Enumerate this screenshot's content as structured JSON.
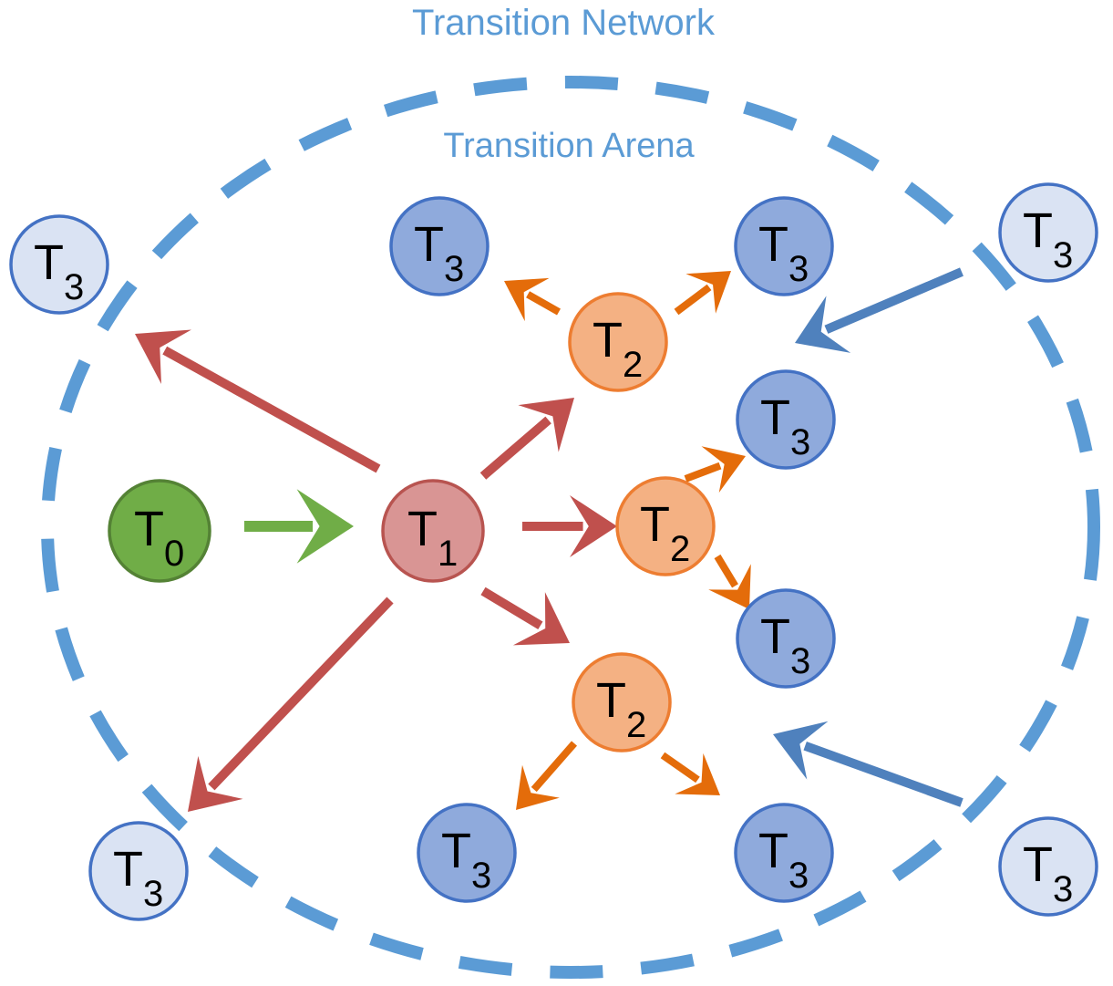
{
  "titles": {
    "network": "Transition Network",
    "arena": "Transition Arena"
  },
  "colors": {
    "arena_border": "#5b9bd5",
    "t0": "#70ad47",
    "t1": "#d99594",
    "t2": "#f4b183",
    "t3_inner": "#8faadc",
    "t3_outer": "#dae3f3",
    "edge_green": "#70ad47",
    "edge_red": "#c0504d",
    "edge_orange": "#e46c0a",
    "edge_blue": "#4f81bd"
  },
  "nodes": [
    {
      "id": "t0",
      "base": "T",
      "sub": "0",
      "kind": "t0"
    },
    {
      "id": "t1",
      "base": "T",
      "sub": "1",
      "kind": "t1"
    },
    {
      "id": "t2-top",
      "base": "T",
      "sub": "2",
      "kind": "t2"
    },
    {
      "id": "t2-mid",
      "base": "T",
      "sub": "2",
      "kind": "t2"
    },
    {
      "id": "t2-bot",
      "base": "T",
      "sub": "2",
      "kind": "t2"
    },
    {
      "id": "t3-a",
      "base": "T",
      "sub": "3",
      "kind": "t3_inner"
    },
    {
      "id": "t3-b",
      "base": "T",
      "sub": "3",
      "kind": "t3_inner"
    },
    {
      "id": "t3-c",
      "base": "T",
      "sub": "3",
      "kind": "t3_inner"
    },
    {
      "id": "t3-d",
      "base": "T",
      "sub": "3",
      "kind": "t3_inner"
    },
    {
      "id": "t3-e",
      "base": "T",
      "sub": "3",
      "kind": "t3_inner"
    },
    {
      "id": "t3-f",
      "base": "T",
      "sub": "3",
      "kind": "t3_inner"
    },
    {
      "id": "t3-out-tl",
      "base": "T",
      "sub": "3",
      "kind": "t3_outer"
    },
    {
      "id": "t3-out-bl",
      "base": "T",
      "sub": "3",
      "kind": "t3_outer"
    },
    {
      "id": "t3-out-tr",
      "base": "T",
      "sub": "3",
      "kind": "t3_outer"
    },
    {
      "id": "t3-out-br",
      "base": "T",
      "sub": "3",
      "kind": "t3_outer"
    }
  ],
  "edges": [
    {
      "id": "t0-t1",
      "color": "edge_green"
    },
    {
      "id": "t1-out-tl",
      "color": "edge_red"
    },
    {
      "id": "t1-out-bl",
      "color": "edge_red"
    },
    {
      "id": "t1-t2-top",
      "color": "edge_red"
    },
    {
      "id": "t1-t2-mid",
      "color": "edge_red"
    },
    {
      "id": "t1-t2-bot",
      "color": "edge_red"
    },
    {
      "id": "t2-top-t3-a",
      "color": "edge_orange"
    },
    {
      "id": "t2-top-t3-b",
      "color": "edge_orange"
    },
    {
      "id": "t2-mid-t3-c",
      "color": "edge_orange"
    },
    {
      "id": "t2-mid-t3-d",
      "color": "edge_orange"
    },
    {
      "id": "t2-bot-t3-e",
      "color": "edge_orange"
    },
    {
      "id": "t2-bot-t3-f",
      "color": "edge_orange"
    },
    {
      "id": "out-tr-in",
      "color": "edge_blue"
    },
    {
      "id": "out-br-in",
      "color": "edge_blue"
    }
  ]
}
